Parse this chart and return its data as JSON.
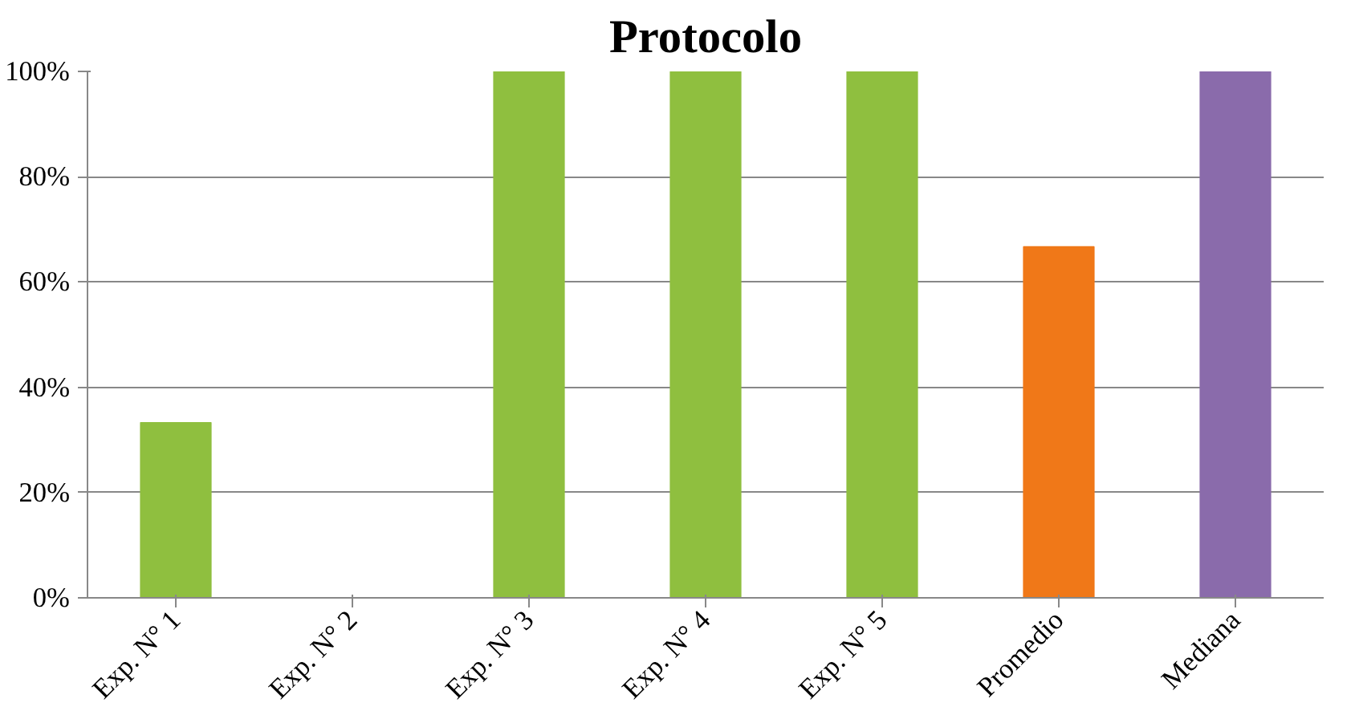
{
  "chart_data": {
    "type": "bar",
    "title": "Protocolo",
    "categories": [
      "Exp. N° 1",
      "Exp. N° 2",
      "Exp. N° 3",
      "Exp. N° 4",
      "Exp. N° 5",
      "Promedio",
      "Mediana"
    ],
    "values": [
      33.3,
      0,
      100,
      100,
      100,
      66.7,
      100
    ],
    "colors": [
      "#8fbf3f",
      "#8fbf3f",
      "#8fbf3f",
      "#8fbf3f",
      "#8fbf3f",
      "#f07818",
      "#8a6bab"
    ],
    "ylim": [
      0,
      100
    ],
    "yticks": [
      {
        "value": 0,
        "label": "0%"
      },
      {
        "value": 20,
        "label": "20%"
      },
      {
        "value": 40,
        "label": "40%"
      },
      {
        "value": 60,
        "label": "60%"
      },
      {
        "value": 80,
        "label": "80%"
      },
      {
        "value": 100,
        "label": "100%"
      }
    ],
    "grid": "y"
  }
}
